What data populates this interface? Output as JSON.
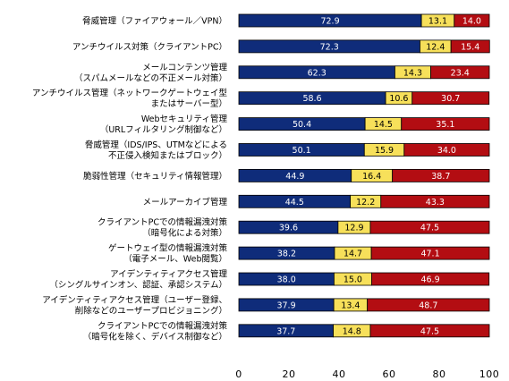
{
  "chart_data": {
    "type": "bar",
    "orientation": "horizontal",
    "stacked": true,
    "categories": [
      [
        "脅威管理（ファイアウォール／VPN）"
      ],
      [
        "アンチウイルス対策（クライアントPC）"
      ],
      [
        "メールコンテンツ管理",
        "（スパムメールなどの不正メール対策）"
      ],
      [
        "アンチウイルス管理（ネットワークゲートウェイ型",
        "またはサーバー型）"
      ],
      [
        "Webセキュリティ管理",
        "（URLフィルタリング制御など）"
      ],
      [
        "脅威管理（IDS/IPS、UTMなどによる",
        "不正侵入検知またはブロック）"
      ],
      [
        "脆弱性管理（セキュリティ情報管理）"
      ],
      [
        "メールアーカイブ管理"
      ],
      [
        "クライアントPCでの情報漏洩対策",
        "（暗号化による対策）"
      ],
      [
        "ゲートウェイ型の情報漏洩対策",
        "（電子メール、Web閲覧）"
      ],
      [
        "アイデンティティアクセス管理",
        "（シングルサインオン、認証、承認システム）"
      ],
      [
        "アイデンティティアクセス管理（ユーザー登録、",
        "削除などのユーザープロビジョニング）"
      ],
      [
        "クライアントPCでの情報漏洩対策",
        "（暗号化を除く、デバイス制御など）"
      ]
    ],
    "series": [
      {
        "color": "#0f2c7a",
        "label_color": "#ffffff",
        "values": [
          72.9,
          72.3,
          62.3,
          58.6,
          50.4,
          50.1,
          44.9,
          44.5,
          39.6,
          38.2,
          38.0,
          37.9,
          37.7
        ]
      },
      {
        "color": "#f7e05a",
        "label_color": "#000000",
        "values": [
          13.1,
          12.4,
          14.3,
          10.6,
          14.5,
          15.9,
          16.4,
          12.2,
          12.9,
          14.7,
          15.0,
          13.4,
          14.8
        ]
      },
      {
        "color": "#b30d12",
        "label_color": "#ffffff",
        "values": [
          14.0,
          15.4,
          23.4,
          30.7,
          35.1,
          34.0,
          38.7,
          43.3,
          47.5,
          47.1,
          46.9,
          48.7,
          47.5
        ]
      }
    ],
    "xlim": [
      0,
      100
    ],
    "xticks": [
      "0",
      "20",
      "40",
      "60",
      "80",
      "100"
    ],
    "grid": false,
    "legend": "none"
  }
}
